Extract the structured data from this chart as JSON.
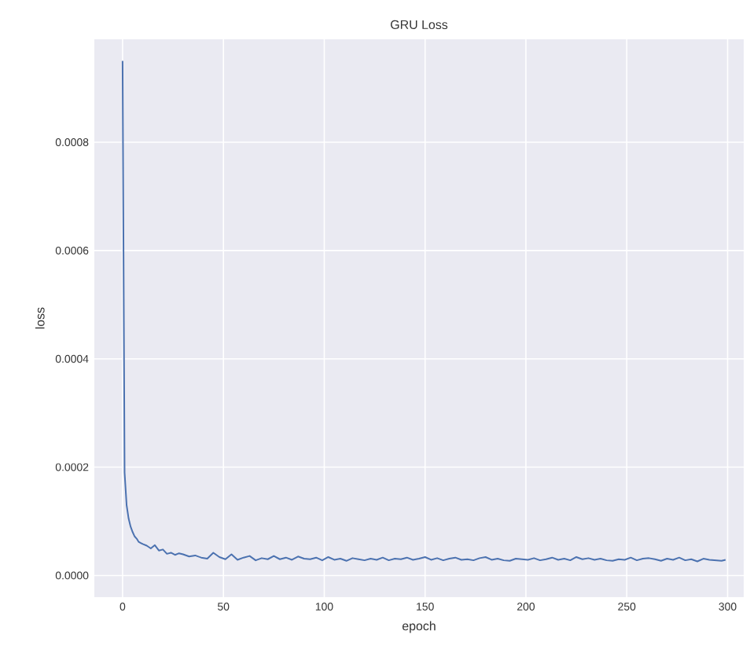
{
  "chart_data": {
    "type": "line",
    "title": "GRU Loss",
    "xlabel": "epoch",
    "ylabel": "loss",
    "x": [
      0,
      1,
      2,
      3,
      4,
      5,
      6,
      7,
      8,
      9,
      10,
      12,
      14,
      16,
      18,
      20,
      22,
      24,
      26,
      28,
      30,
      33,
      36,
      39,
      42,
      45,
      48,
      51,
      54,
      57,
      60,
      63,
      66,
      69,
      72,
      75,
      78,
      81,
      84,
      87,
      90,
      93,
      96,
      99,
      102,
      105,
      108,
      111,
      114,
      117,
      120,
      123,
      126,
      129,
      132,
      135,
      138,
      141,
      144,
      147,
      150,
      153,
      156,
      159,
      162,
      165,
      168,
      171,
      174,
      177,
      180,
      183,
      186,
      189,
      192,
      195,
      198,
      201,
      204,
      207,
      210,
      213,
      216,
      219,
      222,
      225,
      228,
      231,
      234,
      237,
      240,
      243,
      246,
      249,
      252,
      255,
      258,
      261,
      264,
      267,
      270,
      273,
      276,
      279,
      282,
      285,
      288,
      291,
      294,
      297,
      299
    ],
    "series": [
      {
        "color": "#4c72b0",
        "values": [
          0.00095,
          0.00019,
          0.00013,
          0.000105,
          9e-05,
          8e-05,
          7.2e-05,
          6.8e-05,
          6.2e-05,
          6e-05,
          5.8e-05,
          5.5e-05,
          5e-05,
          5.6e-05,
          4.6e-05,
          4.8e-05,
          4e-05,
          4.2e-05,
          3.8e-05,
          4.1e-05,
          3.9e-05,
          3.5e-05,
          3.7e-05,
          3.3e-05,
          3.1e-05,
          4.2e-05,
          3.4e-05,
          3e-05,
          3.9e-05,
          2.9e-05,
          3.3e-05,
          3.6e-05,
          2.8e-05,
          3.2e-05,
          3e-05,
          3.6e-05,
          3e-05,
          3.3e-05,
          2.9e-05,
          3.5e-05,
          3.1e-05,
          3e-05,
          3.3e-05,
          2.8e-05,
          3.4e-05,
          2.9e-05,
          3.1e-05,
          2.7e-05,
          3.2e-05,
          3e-05,
          2.8e-05,
          3.1e-05,
          2.9e-05,
          3.3e-05,
          2.8e-05,
          3.1e-05,
          3e-05,
          3.3e-05,
          2.9e-05,
          3.1e-05,
          3.4e-05,
          2.9e-05,
          3.2e-05,
          2.8e-05,
          3.1e-05,
          3.3e-05,
          2.9e-05,
          3e-05,
          2.8e-05,
          3.2e-05,
          3.4e-05,
          2.9e-05,
          3.1e-05,
          2.8e-05,
          2.7e-05,
          3.1e-05,
          3e-05,
          2.9e-05,
          3.2e-05,
          2.8e-05,
          3e-05,
          3.3e-05,
          2.9e-05,
          3.1e-05,
          2.8e-05,
          3.4e-05,
          3e-05,
          3.2e-05,
          2.9e-05,
          3.1e-05,
          2.8e-05,
          2.7e-05,
          3e-05,
          2.9e-05,
          3.3e-05,
          2.8e-05,
          3.1e-05,
          3.2e-05,
          3e-05,
          2.7e-05,
          3.1e-05,
          2.9e-05,
          3.3e-05,
          2.8e-05,
          3e-05,
          2.6e-05,
          3.1e-05,
          2.9e-05,
          2.8e-05,
          2.7e-05,
          2.9e-05
        ]
      }
    ],
    "xlim": [
      -14,
      308
    ],
    "ylim": [
      -4e-05,
      0.00099
    ],
    "xticks": [
      0,
      50,
      100,
      150,
      200,
      250,
      300
    ],
    "yticks": [
      {
        "value": 0,
        "label": "0.0000"
      },
      {
        "value": 0.0002,
        "label": "0.0002"
      },
      {
        "value": 0.0004,
        "label": "0.0004"
      },
      {
        "value": 0.0006,
        "label": "0.0006"
      },
      {
        "value": 0.0008,
        "label": "0.0008"
      }
    ],
    "grid": true
  }
}
